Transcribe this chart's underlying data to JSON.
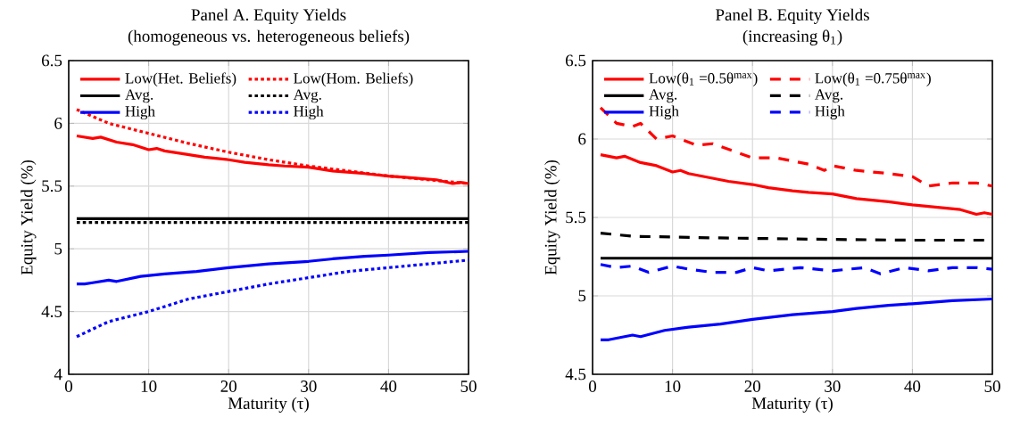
{
  "chart_data": [
    {
      "type": "line",
      "title": "Panel A. Equity Yields",
      "subtitle": "(homogeneous vs. heterogeneous beliefs)",
      "xlabel": "Maturity (τ)",
      "ylabel": "Equity Yield (%)",
      "xlim": [
        0,
        50
      ],
      "ylim": [
        4,
        6.5
      ],
      "xticks": [
        0,
        10,
        20,
        30,
        40,
        50
      ],
      "yticks": [
        4,
        4.5,
        5,
        5.5,
        6,
        6.5
      ],
      "grid": true,
      "legend": "top",
      "series": [
        {
          "name": "Low(Het. Beliefs)",
          "color": "#ff0000",
          "line_style": "solid",
          "x": [
            1,
            3,
            4,
            6,
            8,
            10,
            11,
            12,
            14,
            17,
            20,
            22,
            25,
            27,
            30,
            33,
            37,
            40,
            42,
            44,
            46,
            48,
            49,
            50
          ],
          "values": [
            5.9,
            5.88,
            5.89,
            5.85,
            5.83,
            5.79,
            5.8,
            5.78,
            5.76,
            5.73,
            5.71,
            5.69,
            5.67,
            5.66,
            5.65,
            5.62,
            5.6,
            5.58,
            5.57,
            5.56,
            5.55,
            5.52,
            5.53,
            5.52
          ]
        },
        {
          "name": "Low(Hom. Beliefs)",
          "color": "#ff0000",
          "line_style": "dotted",
          "x": [
            1,
            5,
            10,
            15,
            20,
            25,
            30,
            35,
            40,
            45,
            50
          ],
          "values": [
            6.11,
            6.0,
            5.92,
            5.84,
            5.77,
            5.71,
            5.66,
            5.62,
            5.58,
            5.55,
            5.52
          ]
        },
        {
          "name": "Avg.",
          "color": "#000000",
          "line_style": "solid",
          "x": [
            1,
            10,
            20,
            30,
            40,
            50
          ],
          "values": [
            5.24,
            5.24,
            5.24,
            5.24,
            5.24,
            5.24
          ]
        },
        {
          "name": "Avg.",
          "color": "#000000",
          "line_style": "dotted",
          "x": [
            1,
            10,
            20,
            30,
            40,
            50
          ],
          "values": [
            5.21,
            5.21,
            5.21,
            5.21,
            5.21,
            5.21
          ]
        },
        {
          "name": "High",
          "color": "#0000ff",
          "line_style": "solid",
          "x": [
            1,
            2,
            3,
            5,
            6,
            9,
            12,
            16,
            20,
            25,
            30,
            33,
            37,
            40,
            45,
            50
          ],
          "values": [
            4.72,
            4.72,
            4.73,
            4.75,
            4.74,
            4.78,
            4.8,
            4.82,
            4.85,
            4.88,
            4.9,
            4.92,
            4.94,
            4.95,
            4.97,
            4.98
          ]
        },
        {
          "name": "High",
          "color": "#0000ff",
          "line_style": "dotted",
          "x": [
            1,
            5,
            10,
            15,
            20,
            25,
            30,
            35,
            40,
            45,
            50
          ],
          "values": [
            4.3,
            4.42,
            4.5,
            4.6,
            4.66,
            4.72,
            4.77,
            4.82,
            4.85,
            4.88,
            4.91
          ]
        }
      ]
    },
    {
      "type": "line",
      "title": "Panel B. Equity Yields",
      "subtitle": "(increasing θ$_{1}$)",
      "xlabel": "Maturity (τ)",
      "ylabel": "Equity Yield (%)",
      "xlim": [
        0,
        50
      ],
      "ylim": [
        4.5,
        6.5
      ],
      "xticks": [
        0,
        10,
        20,
        30,
        40,
        50
      ],
      "yticks": [
        4.5,
        5,
        5.5,
        6,
        6.5
      ],
      "grid": true,
      "legend": "top",
      "series": [
        {
          "name": "Low(θ$_{1}$ =0.5θ$^{max}$)",
          "color": "#ff0000",
          "line_style": "solid",
          "x": [
            1,
            3,
            4,
            6,
            8,
            10,
            11,
            12,
            14,
            17,
            20,
            22,
            25,
            27,
            30,
            33,
            37,
            40,
            42,
            44,
            46,
            48,
            49,
            50
          ],
          "values": [
            5.9,
            5.88,
            5.89,
            5.85,
            5.83,
            5.79,
            5.8,
            5.78,
            5.76,
            5.73,
            5.71,
            5.69,
            5.67,
            5.66,
            5.65,
            5.62,
            5.6,
            5.58,
            5.57,
            5.56,
            5.55,
            5.52,
            5.53,
            5.52
          ]
        },
        {
          "name": "Low(θ$_{1}$ =0.75θ$^{max}$)",
          "color": "#ff0000",
          "line_style": "dashed",
          "x": [
            1,
            3,
            5,
            6,
            8,
            10,
            13,
            15,
            20,
            23,
            27,
            29,
            30,
            33,
            37,
            40,
            42,
            45,
            48,
            50
          ],
          "values": [
            6.2,
            6.1,
            6.08,
            6.1,
            6.0,
            6.02,
            5.96,
            5.97,
            5.88,
            5.88,
            5.84,
            5.8,
            5.83,
            5.8,
            5.78,
            5.76,
            5.7,
            5.72,
            5.72,
            5.7
          ]
        },
        {
          "name": "Avg.",
          "color": "#000000",
          "line_style": "solid",
          "x": [
            1,
            10,
            20,
            30,
            40,
            50
          ],
          "values": [
            5.24,
            5.24,
            5.24,
            5.24,
            5.24,
            5.24
          ]
        },
        {
          "name": "Avg.",
          "color": "#000000",
          "line_style": "dashed",
          "x": [
            1,
            5,
            15,
            30,
            40,
            50
          ],
          "values": [
            5.4,
            5.38,
            5.37,
            5.36,
            5.355,
            5.355
          ]
        },
        {
          "name": "High",
          "color": "#0000ff",
          "line_style": "solid",
          "x": [
            1,
            2,
            3,
            5,
            6,
            9,
            12,
            16,
            20,
            25,
            30,
            33,
            37,
            40,
            45,
            50
          ],
          "values": [
            4.72,
            4.72,
            4.73,
            4.75,
            4.74,
            4.78,
            4.8,
            4.82,
            4.85,
            4.88,
            4.9,
            4.92,
            4.94,
            4.95,
            4.97,
            4.98
          ]
        },
        {
          "name": "High",
          "color": "#0000ff",
          "line_style": "dashed",
          "x": [
            1,
            3,
            5,
            7,
            10,
            12,
            15,
            18,
            20,
            22,
            26,
            30,
            34,
            36,
            39,
            42,
            45,
            48,
            50
          ],
          "values": [
            5.2,
            5.18,
            5.19,
            5.15,
            5.19,
            5.17,
            5.15,
            5.15,
            5.18,
            5.16,
            5.18,
            5.16,
            5.18,
            5.14,
            5.18,
            5.16,
            5.18,
            5.18,
            5.17
          ]
        }
      ]
    }
  ]
}
